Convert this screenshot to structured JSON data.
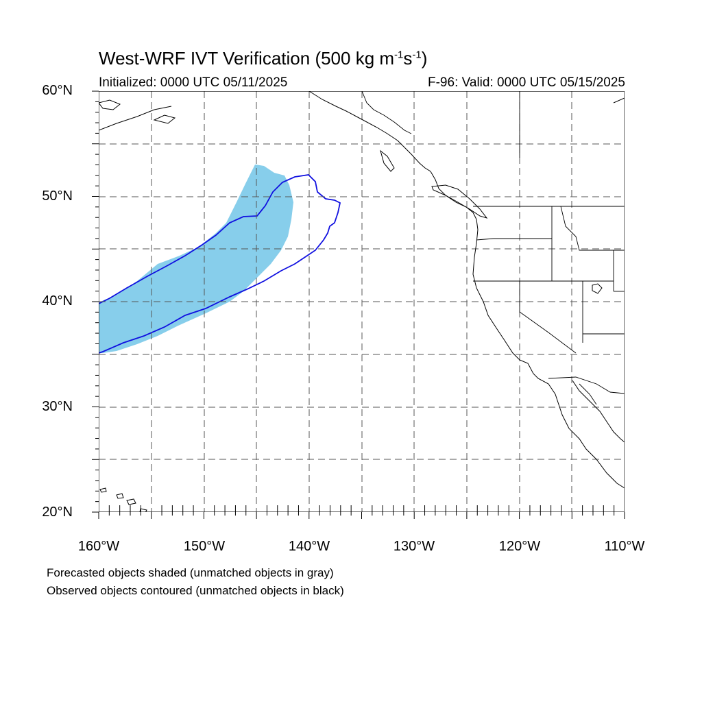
{
  "figure": {
    "title_main": "West-WRF IVT Verification (500 kg m",
    "title_sup1": "-1",
    "title_mid": "s",
    "title_sup2": "-1",
    "title_end": ")",
    "init_text": "Initialized: 0000 UTC 05/11/2025",
    "valid_text": "F-96: Valid: 0000 UTC 05/15/2025"
  },
  "axes": {
    "lat_labels": [
      "60°N",
      "50°N",
      "40°N",
      "30°N",
      "20°N"
    ],
    "lon_labels": [
      "160°W",
      "150°W",
      "140°W",
      "130°W",
      "120°W",
      "110°W"
    ]
  },
  "legend": {
    "forecast_note": "Forecasted objects shaded (unmatched objects in gray)",
    "observed_note": "Observed objects contoured (unmatched objects in black)"
  },
  "colors": {
    "forecast_fill": "#87ceeb",
    "observed_contour": "#1010e0",
    "grid": "#555555",
    "coast": "#000000"
  }
}
